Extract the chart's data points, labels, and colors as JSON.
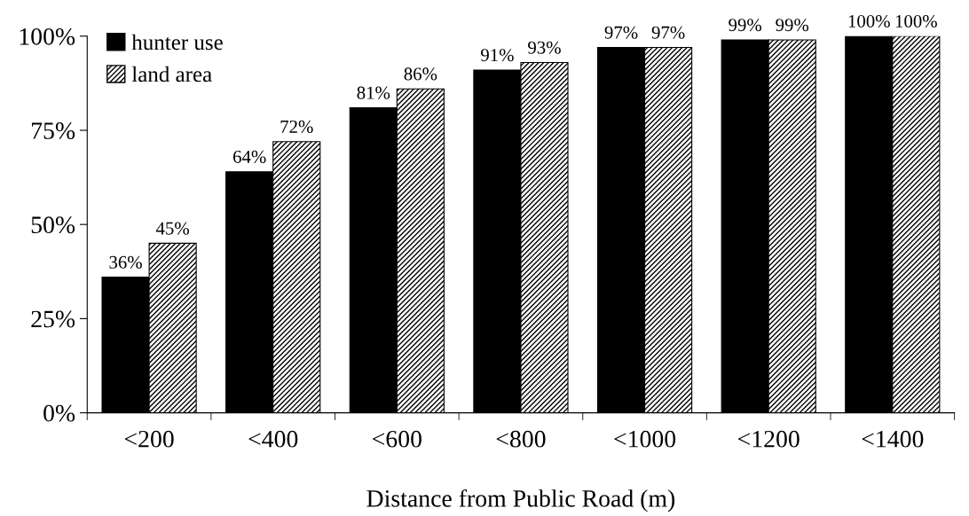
{
  "chart_data": {
    "type": "bar",
    "xlabel": "Distance from Public Road (m)",
    "categories": [
      "<200",
      "<400",
      "<600",
      "<800",
      "<1000",
      "<1200",
      "<1400"
    ],
    "series": [
      {
        "name": "hunter use",
        "color": "#000000",
        "values": [
          36,
          64,
          81,
          91,
          97,
          99,
          100
        ],
        "value_labels": [
          "36%",
          "64%",
          "81%",
          "91%",
          "97%",
          "99%",
          "100%"
        ]
      },
      {
        "name": "land area",
        "color": "#000000",
        "values": [
          45,
          72,
          86,
          93,
          97,
          99,
          100
        ],
        "value_labels": [
          "45%",
          "72%",
          "86%",
          "93%",
          "97%",
          "99%",
          "100%"
        ]
      }
    ],
    "ylim": [
      0,
      100
    ],
    "yticks": [
      {
        "value": 0,
        "label": "0%"
      },
      {
        "value": 25,
        "label": "25%"
      },
      {
        "value": 50,
        "label": "50%"
      },
      {
        "value": 75,
        "label": "75%"
      },
      {
        "value": 100,
        "label": "100%"
      }
    ],
    "legend": "top left",
    "grid": false
  }
}
